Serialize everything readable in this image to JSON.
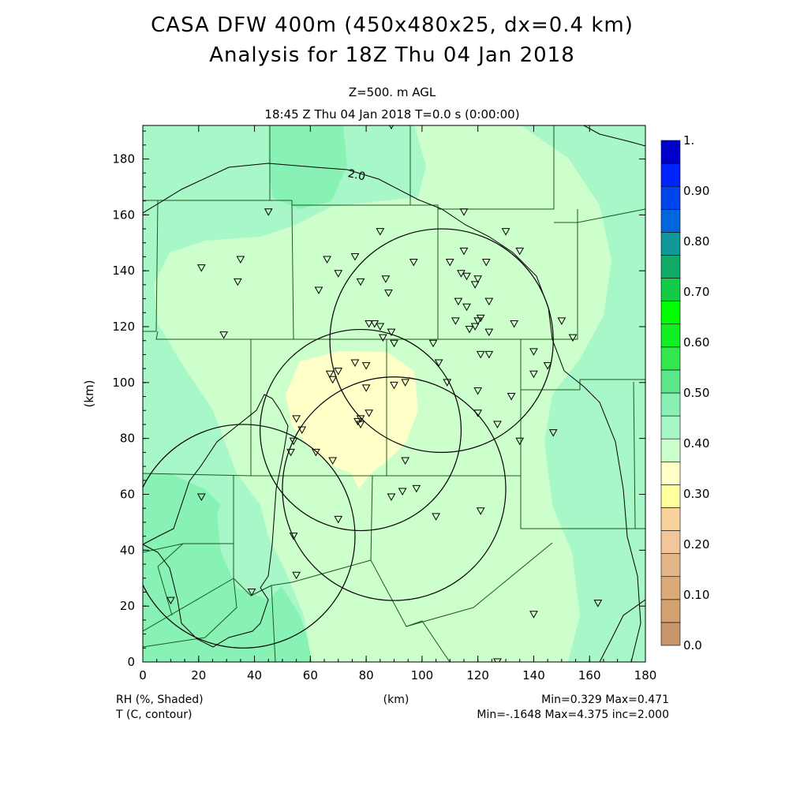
{
  "header": {
    "title_line1": "CASA DFW 400m (450x480x25, dx=0.4 km)",
    "title_line2": "Analysis for 18Z Thu 04 Jan 2018",
    "level": "Z=500. m AGL",
    "valid_time": "18:45 Z Thu 04 Jan 2018     T=0.0 s (0:00:00)"
  },
  "footer": {
    "field1_label": "RH (%, Shaded)",
    "field2_label": "T (C, contour)",
    "x_unit": "(km)",
    "field1_stats": "Min=0.329  Max=0.471",
    "field2_stats": "Min=-.1648  Max=4.375  inc=2.000"
  },
  "chart_data": {
    "type": "heatmap",
    "xlabel": "(km)",
    "ylabel": "(km)",
    "xlim": [
      0,
      180
    ],
    "ylim": [
      0,
      192
    ],
    "x_ticks": [
      "0",
      "20",
      "40",
      "60",
      "80",
      "100",
      "120",
      "140",
      "160",
      "180"
    ],
    "y_ticks": [
      "0",
      "20",
      "40",
      "60",
      "80",
      "100",
      "120",
      "140",
      "160",
      "180"
    ],
    "colorbar": {
      "labels": [
        "0.0",
        "0.10",
        "0.20",
        "0.30",
        "0.40",
        "0.50",
        "0.60",
        "0.70",
        "0.80",
        "0.90",
        "1."
      ],
      "colors": [
        "#c8966a",
        "#d3a070",
        "#dcaa78",
        "#e2b686",
        "#f3c59b",
        "#fad29e",
        "#ffffa0",
        "#ffffc8",
        "#ccffcc",
        "#a8f7c8",
        "#88f2b5",
        "#5ce68c",
        "#33e64c",
        "#11ee22",
        "#00ff00",
        "#11cc44",
        "#11aa66",
        "#119999",
        "#0066dd",
        "#0044ee",
        "#0022ff",
        "#0000cc"
      ]
    },
    "contour_labels": [
      "2.0"
    ],
    "radar_circles": [
      {
        "cx": 78,
        "cy": 83,
        "r": 36
      },
      {
        "cx": 107,
        "cy": 115,
        "r": 40
      },
      {
        "cx": 90,
        "cy": 62,
        "r": 40
      },
      {
        "cx": 36,
        "cy": 45,
        "r": 40
      }
    ],
    "stations": [
      [
        89,
        192
      ],
      [
        45,
        161
      ],
      [
        115,
        161
      ],
      [
        85,
        154
      ],
      [
        130,
        154
      ],
      [
        135,
        147
      ],
      [
        21,
        141
      ],
      [
        35,
        144
      ],
      [
        66,
        144
      ],
      [
        70,
        139
      ],
      [
        76,
        145
      ],
      [
        78,
        136
      ],
      [
        87,
        137
      ],
      [
        88,
        132
      ],
      [
        97,
        143
      ],
      [
        110,
        143
      ],
      [
        115,
        147
      ],
      [
        123,
        143
      ],
      [
        114,
        139
      ],
      [
        116,
        138
      ],
      [
        120,
        137
      ],
      [
        119,
        135
      ],
      [
        34,
        136
      ],
      [
        63,
        133
      ],
      [
        113,
        129
      ],
      [
        116,
        127
      ],
      [
        124,
        129
      ],
      [
        81,
        121
      ],
      [
        83,
        121
      ],
      [
        85,
        120
      ],
      [
        89,
        118
      ],
      [
        86,
        116
      ],
      [
        90,
        114
      ],
      [
        112,
        122
      ],
      [
        119,
        120
      ],
      [
        120,
        122
      ],
      [
        121,
        123
      ],
      [
        117,
        119
      ],
      [
        124,
        118
      ],
      [
        133,
        121
      ],
      [
        150,
        122
      ],
      [
        154,
        116
      ],
      [
        29,
        117
      ],
      [
        104,
        114
      ],
      [
        106,
        107
      ],
      [
        121,
        110
      ],
      [
        124,
        110
      ],
      [
        140,
        111
      ],
      [
        145,
        106
      ],
      [
        140,
        103
      ],
      [
        67,
        103
      ],
      [
        70,
        104
      ],
      [
        68,
        101
      ],
      [
        76,
        107
      ],
      [
        80,
        106
      ],
      [
        80,
        98
      ],
      [
        90,
        99
      ],
      [
        94,
        100
      ],
      [
        109,
        100
      ],
      [
        120,
        97
      ],
      [
        132,
        95
      ],
      [
        55,
        87
      ],
      [
        57,
        83
      ],
      [
        81,
        89
      ],
      [
        78,
        87
      ],
      [
        77,
        86
      ],
      [
        78,
        85
      ],
      [
        120,
        89
      ],
      [
        127,
        85
      ],
      [
        135,
        79
      ],
      [
        147,
        82
      ],
      [
        54,
        79
      ],
      [
        53,
        75
      ],
      [
        62,
        75
      ],
      [
        68,
        72
      ],
      [
        94,
        72
      ],
      [
        21,
        59
      ],
      [
        89,
        59
      ],
      [
        93,
        61
      ],
      [
        98,
        62
      ],
      [
        70,
        51
      ],
      [
        105,
        52
      ],
      [
        121,
        54
      ],
      [
        54,
        45
      ],
      [
        55,
        31
      ],
      [
        39,
        25
      ],
      [
        10,
        22
      ],
      [
        140,
        17
      ],
      [
        163,
        21
      ],
      [
        127,
        0
      ]
    ]
  }
}
